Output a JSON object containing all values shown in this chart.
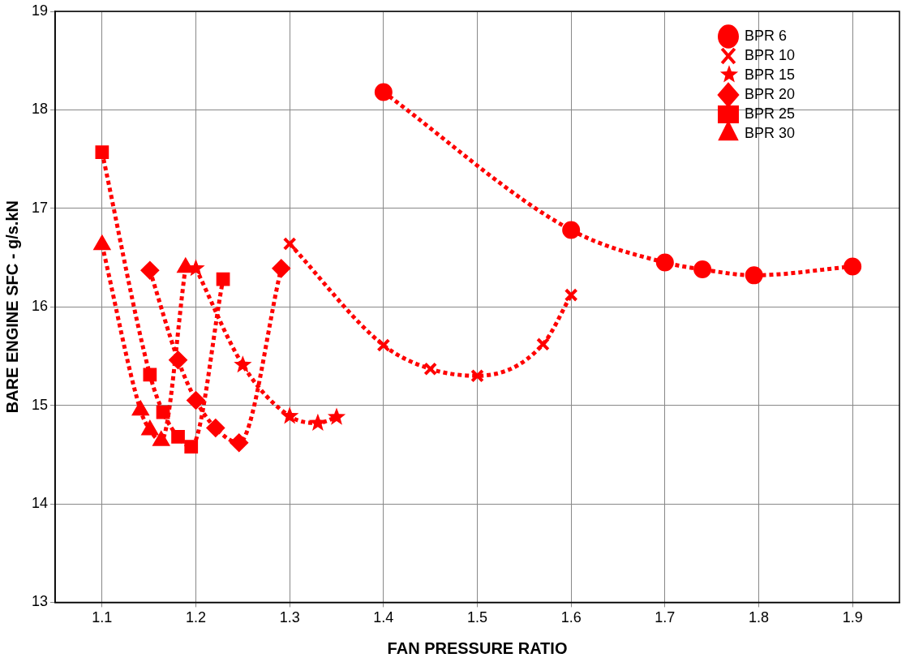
{
  "chart_data": {
    "type": "line",
    "xlabel": "FAN PRESSURE RATIO",
    "ylabel": "BARE ENGINE SFC - g/s.kN",
    "xlim": [
      1.05,
      1.95
    ],
    "xticks": [
      1.1,
      1.2,
      1.3,
      1.4,
      1.5,
      1.6,
      1.7,
      1.8,
      1.9
    ],
    "ylim": [
      13,
      19
    ],
    "yticks": [
      13,
      14,
      15,
      16,
      17,
      18,
      19
    ],
    "grid": true,
    "legend": "top right",
    "line_style": "dotted",
    "series": [
      {
        "name": "BPR 6",
        "color": "#ff0000",
        "marker": "circle",
        "x": [
          1.4,
          1.6,
          1.7,
          1.74,
          1.795,
          1.9
        ],
        "values": [
          18.18,
          16.78,
          16.45,
          16.38,
          16.32,
          16.41
        ]
      },
      {
        "name": "BPR 10",
        "color": "#ff0000",
        "marker": "cross",
        "x": [
          1.3,
          1.4,
          1.45,
          1.5,
          1.57,
          1.6
        ],
        "values": [
          16.64,
          15.61,
          15.37,
          15.3,
          15.62,
          16.12
        ]
      },
      {
        "name": "BPR 15",
        "color": "#ff0000",
        "marker": "star",
        "x": [
          1.2,
          1.25,
          1.3,
          1.33,
          1.35
        ],
        "values": [
          16.39,
          15.41,
          14.89,
          14.82,
          14.88
        ]
      },
      {
        "name": "BPR 20",
        "color": "#ff0000",
        "marker": "diamond",
        "x": [
          1.151,
          1.181,
          1.2,
          1.221,
          1.246,
          1.291
        ],
        "values": [
          16.37,
          15.46,
          15.05,
          14.77,
          14.62,
          16.39
        ]
      },
      {
        "name": "BPR 25",
        "color": "#ff0000",
        "marker": "square",
        "x": [
          1.1,
          1.151,
          1.165,
          1.181,
          1.195,
          1.229
        ],
        "values": [
          17.57,
          15.31,
          14.93,
          14.68,
          14.58,
          16.28
        ]
      },
      {
        "name": "BPR 30",
        "color": "#ff0000",
        "marker": "triangle",
        "x": [
          1.1,
          1.141,
          1.151,
          1.163,
          1.189
        ],
        "values": [
          16.63,
          14.95,
          14.75,
          14.64,
          16.4
        ]
      }
    ]
  }
}
